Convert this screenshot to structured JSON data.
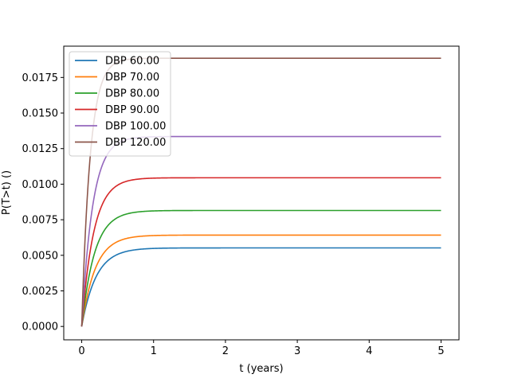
{
  "chart_data": {
    "type": "line",
    "xlabel": "t (years)",
    "ylabel": "P(T>t) ()",
    "xlim": [
      -0.25,
      5.25
    ],
    "ylim": [
      -0.00094,
      0.0197
    ],
    "x_ticks": [
      0,
      1,
      2,
      3,
      4,
      5
    ],
    "x_tick_labels": [
      "0",
      "1",
      "2",
      "3",
      "4",
      "5"
    ],
    "y_ticks": [
      0.0,
      0.0025,
      0.005,
      0.0075,
      0.01,
      0.0125,
      0.015,
      0.0175
    ],
    "y_tick_labels": [
      "0.0000",
      "0.0025",
      "0.0050",
      "0.0075",
      "0.0100",
      "0.0125",
      "0.0150",
      "0.0175"
    ],
    "grid": false,
    "legend_position": "top-left",
    "model": "P(t) = plateau * (1 - exp(-rate * t))",
    "series": [
      {
        "name": "DBP 60.00",
        "color": "#1f77b4",
        "plateau": 0.00552,
        "rate": 5.0
      },
      {
        "name": "DBP 70.00",
        "color": "#ff7f0e",
        "plateau": 0.00642,
        "rate": 5.3
      },
      {
        "name": "DBP 80.00",
        "color": "#2ca02c",
        "plateau": 0.00815,
        "rate": 5.6
      },
      {
        "name": "DBP 90.00",
        "color": "#d62728",
        "plateau": 0.01045,
        "rate": 6.0
      },
      {
        "name": "DBP 100.00",
        "color": "#9467bd",
        "plateau": 0.01335,
        "rate": 6.6
      },
      {
        "name": "DBP 120.00",
        "color": "#8c564b",
        "plateau": 0.01885,
        "rate": 8.5
      }
    ]
  }
}
